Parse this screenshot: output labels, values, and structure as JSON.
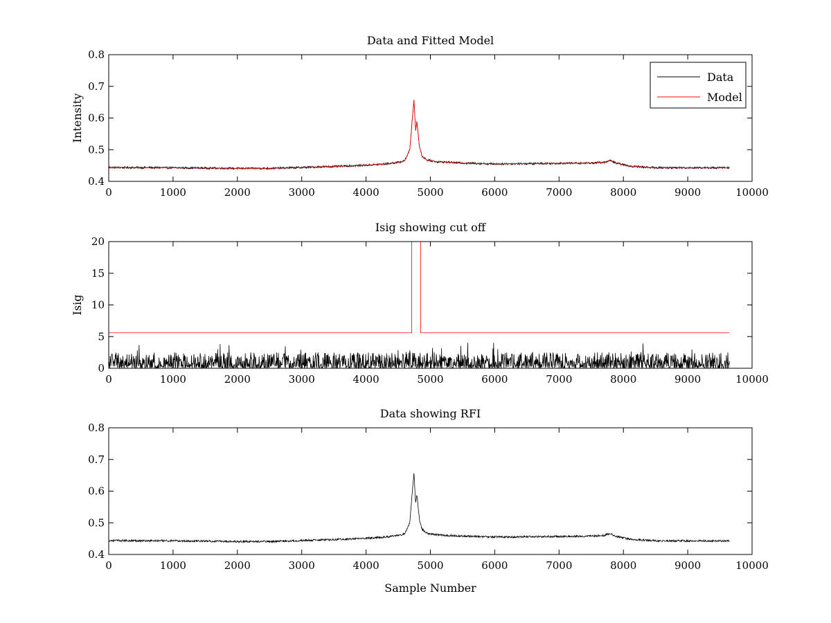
{
  "chart_data": [
    {
      "type": "line",
      "title": "Data and Fitted Model",
      "xlabel": "",
      "ylabel": "Intensity",
      "xlim": [
        0,
        10000
      ],
      "ylim": [
        0.4,
        0.8
      ],
      "xticks": [
        "0",
        "1000",
        "2000",
        "3000",
        "4000",
        "5000",
        "6000",
        "7000",
        "8000",
        "9000",
        "10000"
      ],
      "yticks": [
        "0.4",
        "0.5",
        "0.6",
        "0.7",
        "0.8"
      ],
      "legend": {
        "position": "top-right",
        "entries": [
          "Data",
          "Model"
        ]
      },
      "series": [
        {
          "name": "Data",
          "color": "#000000",
          "style": "noisy",
          "noise": 0.003,
          "x": [
            0,
            1000,
            2000,
            2500,
            3000,
            3500,
            4000,
            4300,
            4500,
            4600,
            4680,
            4720,
            4745,
            4770,
            4790,
            4810,
            4830,
            4870,
            4950,
            5100,
            5500,
            6000,
            7000,
            7500,
            7700,
            7790,
            7880,
            8100,
            8500,
            9000,
            9650
          ],
          "y": [
            0.444,
            0.443,
            0.441,
            0.441,
            0.444,
            0.447,
            0.451,
            0.455,
            0.46,
            0.465,
            0.5,
            0.6,
            0.658,
            0.56,
            0.59,
            0.55,
            0.51,
            0.48,
            0.467,
            0.462,
            0.458,
            0.455,
            0.457,
            0.458,
            0.46,
            0.466,
            0.458,
            0.448,
            0.443,
            0.443,
            0.443
          ]
        },
        {
          "name": "Model",
          "color": "#ff0000",
          "style": "smooth",
          "x": [
            0,
            1000,
            2000,
            2500,
            3000,
            3500,
            4000,
            4300,
            4500,
            4600,
            4680,
            4720,
            4745,
            4770,
            4790,
            4810,
            4830,
            4870,
            4950,
            5100,
            5500,
            6000,
            7000,
            7500,
            7700,
            7790,
            7880,
            8100,
            8500,
            9000,
            9650
          ],
          "y": [
            0.444,
            0.443,
            0.441,
            0.441,
            0.444,
            0.447,
            0.451,
            0.455,
            0.46,
            0.465,
            0.5,
            0.6,
            0.658,
            0.56,
            0.59,
            0.55,
            0.51,
            0.48,
            0.467,
            0.462,
            0.458,
            0.455,
            0.457,
            0.458,
            0.46,
            0.466,
            0.458,
            0.448,
            0.443,
            0.443,
            0.443
          ]
        }
      ]
    },
    {
      "type": "line",
      "title": "Isig showing cut off",
      "xlabel": "",
      "ylabel": "Isig",
      "xlim": [
        0,
        10000
      ],
      "ylim": [
        0,
        20
      ],
      "xticks": [
        "0",
        "1000",
        "2000",
        "3000",
        "4000",
        "5000",
        "6000",
        "7000",
        "8000",
        "9000",
        "10000"
      ],
      "yticks": [
        "0",
        "5",
        "10",
        "15",
        "20"
      ],
      "series": [
        {
          "color": "#000000",
          "style": "spikes",
          "x_range": [
            0,
            9650
          ],
          "y_max_typical": 2.5,
          "y_max_peak": 4.2
        },
        {
          "color": "#ff0000",
          "style": "step",
          "x": [
            0,
            4710,
            4710,
            4850,
            4850,
            9650
          ],
          "y": [
            5.6,
            5.6,
            20,
            20,
            5.6,
            5.6
          ]
        }
      ]
    },
    {
      "type": "line",
      "title": "Data showing RFI",
      "xlabel": "Sample Number",
      "ylabel": "",
      "xlim": [
        0,
        10000
      ],
      "ylim": [
        0.4,
        0.8
      ],
      "xticks": [
        "0",
        "1000",
        "2000",
        "3000",
        "4000",
        "5000",
        "6000",
        "7000",
        "8000",
        "9000",
        "10000"
      ],
      "yticks": [
        "0.4",
        "0.5",
        "0.6",
        "0.7",
        "0.8"
      ],
      "series": [
        {
          "color": "#000000",
          "style": "noisy",
          "noise": 0.003,
          "x": [
            0,
            1000,
            2000,
            2500,
            3000,
            3500,
            4000,
            4300,
            4500,
            4600,
            4680,
            4720,
            4745,
            4770,
            4790,
            4810,
            4830,
            4870,
            4950,
            5100,
            5500,
            6000,
            7000,
            7500,
            7700,
            7790,
            7880,
            8100,
            8500,
            9000,
            9650
          ],
          "y": [
            0.444,
            0.443,
            0.441,
            0.441,
            0.444,
            0.447,
            0.451,
            0.455,
            0.46,
            0.465,
            0.5,
            0.6,
            0.658,
            0.56,
            0.59,
            0.55,
            0.51,
            0.48,
            0.467,
            0.462,
            0.458,
            0.455,
            0.457,
            0.458,
            0.46,
            0.466,
            0.458,
            0.448,
            0.443,
            0.443,
            0.443
          ]
        }
      ]
    }
  ]
}
